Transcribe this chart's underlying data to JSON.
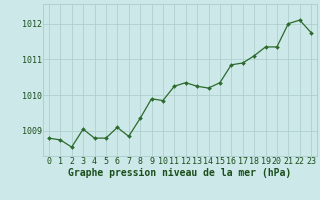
{
  "x": [
    0,
    1,
    2,
    3,
    4,
    5,
    6,
    7,
    8,
    9,
    10,
    11,
    12,
    13,
    14,
    15,
    16,
    17,
    18,
    19,
    20,
    21,
    22,
    23
  ],
  "y": [
    1008.8,
    1008.75,
    1008.55,
    1009.05,
    1008.8,
    1008.8,
    1009.1,
    1008.85,
    1009.35,
    1009.9,
    1009.85,
    1010.25,
    1010.35,
    1010.25,
    1010.2,
    1010.35,
    1010.85,
    1010.9,
    1011.1,
    1011.35,
    1011.35,
    1012.0,
    1012.1,
    1011.75
  ],
  "line_color": "#2d6a2d",
  "marker_color": "#2d6a2d",
  "bg_color": "#cce8e8",
  "grid_color": "#aacccc",
  "ylabel_ticks": [
    1009,
    1010,
    1011,
    1012
  ],
  "xlabel_label": "Graphe pression niveau de la mer (hPa)",
  "ylim": [
    1008.3,
    1012.55
  ],
  "xlim": [
    -0.5,
    23.5
  ],
  "title_color": "#1a4d1a",
  "label_fontsize": 7,
  "tick_fontsize": 6,
  "xlabel_fontsize": 7
}
